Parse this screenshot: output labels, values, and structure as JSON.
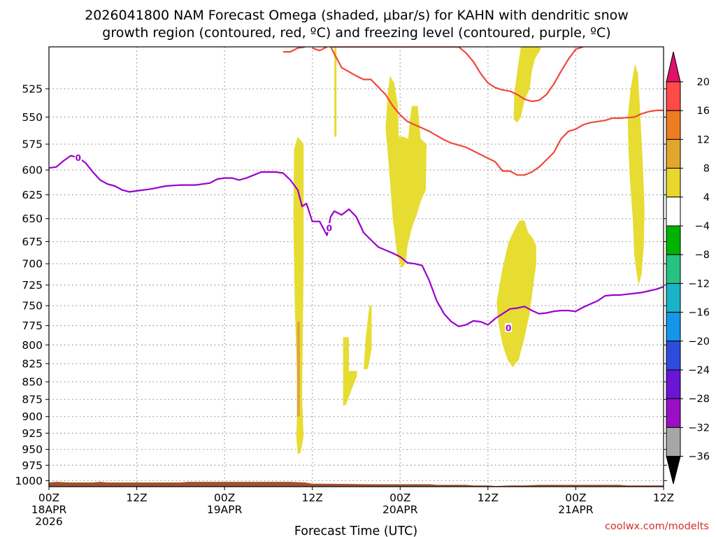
{
  "chart_data": {
    "type": "time-height cross section",
    "title_lines": [
      "2026041800 NAM Forecast Omega (shaded, μbar/s) for KAHN with dendritic snow",
      "growth region (contoured, red, ºC) and freezing level (contoured, purple, ºC)"
    ],
    "xlabel": "Forecast Time (UTC)",
    "credit": "coolwx.com/modelts",
    "x_range_hours": [
      0,
      84
    ],
    "y_range_hpa": [
      1010,
      490
    ],
    "x_ticks": [
      {
        "hour": 0,
        "lines": [
          "00Z",
          "18APR",
          "2026"
        ]
      },
      {
        "hour": 12,
        "lines": [
          "12Z"
        ]
      },
      {
        "hour": 24,
        "lines": [
          "00Z",
          "19APR"
        ]
      },
      {
        "hour": 36,
        "lines": [
          "12Z"
        ]
      },
      {
        "hour": 48,
        "lines": [
          "00Z",
          "20APR"
        ]
      },
      {
        "hour": 60,
        "lines": [
          "12Z"
        ]
      },
      {
        "hour": 72,
        "lines": [
          "00Z",
          "21APR"
        ]
      },
      {
        "hour": 84,
        "lines": [
          "12Z"
        ]
      }
    ],
    "y_ticks": [
      "525",
      "550",
      "575",
      "600",
      "625",
      "650",
      "675",
      "700",
      "725",
      "750",
      "775",
      "800",
      "825",
      "850",
      "875",
      "900",
      "925",
      "950",
      "975",
      "1000"
    ],
    "colorbar": {
      "labels": [
        "20",
        "16",
        "12",
        "8",
        "4",
        "−4",
        "−8",
        "−12",
        "−16",
        "−20",
        "−24",
        "−28",
        "−32",
        "−36"
      ],
      "colors": [
        "#ff4a4a",
        "#ee7d22",
        "#e2a62c",
        "#e8d82e",
        "#ffffff",
        "#00b300",
        "#27c281",
        "#19b2c7",
        "#1596ea",
        "#2f4bdc",
        "#6a14d4",
        "#9a0fc4",
        "#a6a6a6"
      ],
      "top_arrow_color": "#e0106b",
      "bottom_arrow_color": "#000000"
    },
    "colors": {
      "omega_positive": "#e7dc32",
      "omega_positive_strong": "#e0a63a",
      "snow_growth": "#f2473c",
      "freezing_level": "#9b00cc",
      "terrain": "#a0522d"
    },
    "freezing_level_label": "0",
    "freezing_level": [
      [
        0,
        598
      ],
      [
        1,
        597
      ],
      [
        2,
        591
      ],
      [
        3,
        586
      ],
      [
        4,
        588
      ],
      [
        5,
        593
      ],
      [
        6,
        602
      ],
      [
        7,
        610
      ],
      [
        8,
        614
      ],
      [
        9,
        616
      ],
      [
        10,
        620
      ],
      [
        11,
        622
      ],
      [
        12,
        621
      ],
      [
        14,
        619
      ],
      [
        16,
        616
      ],
      [
        18,
        615
      ],
      [
        20,
        615
      ],
      [
        22,
        613
      ],
      [
        23,
        609
      ],
      [
        24,
        608
      ],
      [
        25,
        608
      ],
      [
        26,
        610
      ],
      [
        27,
        608
      ],
      [
        28,
        605
      ],
      [
        29,
        602
      ],
      [
        30,
        602
      ],
      [
        31,
        602
      ],
      [
        32,
        603
      ],
      [
        33,
        610
      ],
      [
        34,
        620
      ],
      [
        34.6,
        637
      ],
      [
        35.2,
        634
      ],
      [
        36,
        653
      ],
      [
        37,
        653
      ],
      [
        38,
        668
      ],
      [
        38.5,
        648
      ],
      [
        39,
        642
      ],
      [
        40,
        646
      ],
      [
        41,
        640
      ],
      [
        42,
        648
      ],
      [
        43,
        665
      ],
      [
        44,
        673
      ],
      [
        45,
        681
      ],
      [
        47,
        688
      ],
      [
        48,
        692
      ],
      [
        49,
        699
      ],
      [
        50,
        700
      ],
      [
        51,
        702
      ],
      [
        52,
        720
      ],
      [
        53,
        744
      ],
      [
        54,
        760
      ],
      [
        55,
        770
      ],
      [
        56,
        776
      ],
      [
        57,
        774
      ],
      [
        58,
        769
      ],
      [
        59,
        770
      ],
      [
        60,
        774
      ],
      [
        61,
        766
      ],
      [
        62,
        760
      ],
      [
        63,
        754
      ],
      [
        64,
        753
      ],
      [
        65,
        751
      ],
      [
        66,
        756
      ],
      [
        67,
        760
      ],
      [
        68,
        759
      ],
      [
        69,
        757
      ],
      [
        70,
        756
      ],
      [
        71,
        756
      ],
      [
        72,
        757
      ],
      [
        73,
        752
      ],
      [
        74,
        748
      ],
      [
        75,
        744
      ],
      [
        76,
        738
      ],
      [
        77,
        737
      ],
      [
        78,
        737
      ],
      [
        79,
        736
      ],
      [
        80,
        735
      ],
      [
        81,
        734
      ],
      [
        82,
        732
      ],
      [
        83,
        730
      ],
      [
        84,
        727
      ]
    ],
    "freezing_label_points": [
      [
        4,
        588
      ],
      [
        38.3,
        660
      ],
      [
        62.8,
        778
      ]
    ],
    "snow_growth_contours": [
      [
        [
          32,
          494
        ],
        [
          33,
          494
        ],
        [
          34,
          491
        ],
        [
          35,
          490
        ]
      ],
      [
        [
          36,
          491
        ],
        [
          37,
          493
        ],
        [
          38,
          490
        ]
      ],
      [
        [
          38.5,
          490
        ],
        [
          40,
          507
        ],
        [
          42,
          514
        ],
        [
          43,
          517
        ],
        [
          44,
          517
        ],
        [
          46,
          530
        ],
        [
          47,
          540
        ],
        [
          48,
          548
        ],
        [
          49,
          554
        ],
        [
          50,
          557
        ],
        [
          51,
          560
        ],
        [
          52,
          563
        ],
        [
          53,
          567
        ],
        [
          54,
          571
        ],
        [
          55,
          574
        ],
        [
          57,
          578
        ],
        [
          59,
          585
        ],
        [
          61,
          592
        ],
        [
          62,
          601
        ],
        [
          63,
          601
        ],
        [
          64,
          605
        ],
        [
          65,
          605
        ],
        [
          66,
          602
        ],
        [
          67,
          597
        ],
        [
          68,
          590
        ],
        [
          69,
          583
        ],
        [
          70,
          570
        ],
        [
          71,
          563
        ],
        [
          72,
          561
        ],
        [
          73,
          557
        ],
        [
          74,
          555
        ],
        [
          75,
          554
        ],
        [
          76,
          553
        ],
        [
          77,
          551
        ],
        [
          78,
          551
        ],
        [
          80,
          550
        ],
        [
          81,
          547
        ],
        [
          82,
          545
        ],
        [
          83,
          544
        ],
        [
          84,
          544
        ]
      ],
      [
        [
          38.5,
          490
        ],
        [
          39,
          490
        ],
        [
          40,
          490
        ],
        [
          44,
          490
        ],
        [
          48,
          490
        ],
        [
          50,
          490
        ],
        [
          52,
          490
        ],
        [
          54,
          490
        ],
        [
          56,
          490
        ],
        [
          57,
          495
        ],
        [
          58,
          502
        ],
        [
          59,
          512
        ],
        [
          60,
          520
        ],
        [
          61,
          524
        ],
        [
          62,
          526
        ],
        [
          63,
          527
        ],
        [
          64,
          530
        ],
        [
          65,
          534
        ],
        [
          66,
          536
        ],
        [
          67,
          535
        ],
        [
          68,
          530
        ],
        [
          69,
          521
        ],
        [
          70,
          510
        ],
        [
          71,
          500
        ],
        [
          72,
          492
        ],
        [
          73,
          490
        ]
      ]
    ],
    "omega_regions": [
      {
        "level": "4",
        "points": [
          [
            33.5,
            580
          ],
          [
            34,
            568
          ],
          [
            34.8,
            575
          ],
          [
            34.8,
            700
          ],
          [
            34.6,
            870
          ],
          [
            34.8,
            930
          ],
          [
            34.4,
            955
          ],
          [
            34.0,
            958
          ],
          [
            33.8,
            930
          ],
          [
            34.0,
            870
          ],
          [
            33.6,
            750
          ],
          [
            33.4,
            650
          ]
        ]
      },
      {
        "level": "8",
        "points": [
          [
            33.9,
            770
          ],
          [
            34.3,
            770
          ],
          [
            34.3,
            900
          ],
          [
            33.9,
            900
          ]
        ]
      },
      {
        "level": "4",
        "points": [
          [
            39.0,
            490
          ],
          [
            39.3,
            490
          ],
          [
            39.3,
            568
          ],
          [
            39.0,
            568
          ]
        ]
      },
      {
        "level": "4",
        "points": [
          [
            40.2,
            790
          ],
          [
            41.0,
            790
          ],
          [
            41.0,
            835
          ],
          [
            42.1,
            835
          ],
          [
            42.1,
            842
          ],
          [
            41.4,
            860
          ],
          [
            40.6,
            882
          ],
          [
            40.2,
            885
          ]
        ]
      },
      {
        "level": "4",
        "points": [
          [
            43.0,
            833
          ],
          [
            43.3,
            790
          ],
          [
            43.8,
            750
          ],
          [
            44.1,
            750
          ],
          [
            44.1,
            805
          ],
          [
            43.6,
            832
          ]
        ]
      },
      {
        "level": "4",
        "points": [
          [
            46.6,
            514
          ],
          [
            47.2,
            520
          ],
          [
            47.7,
            540
          ],
          [
            47.8,
            568
          ],
          [
            48.5,
            568
          ],
          [
            49.1,
            570
          ],
          [
            49.3,
            555
          ],
          [
            49.6,
            540
          ],
          [
            50.4,
            540
          ],
          [
            50.8,
            570
          ],
          [
            51.6,
            575
          ],
          [
            51.5,
            620
          ],
          [
            50.8,
            632
          ],
          [
            50.3,
            645
          ],
          [
            49.6,
            660
          ],
          [
            49.0,
            680
          ],
          [
            48.7,
            700
          ],
          [
            48.2,
            705
          ],
          [
            47.6,
            690
          ],
          [
            47.0,
            650
          ],
          [
            46.5,
            600
          ],
          [
            46.0,
            560
          ],
          [
            46.3,
            530
          ]
        ]
      },
      {
        "level": "4",
        "points": [
          [
            64.5,
            490
          ],
          [
            65.4,
            490
          ],
          [
            67.2,
            490
          ],
          [
            67.2,
            492
          ],
          [
            66.4,
            500
          ],
          [
            66.0,
            510
          ],
          [
            65.7,
            525
          ],
          [
            65.0,
            535
          ],
          [
            64.5,
            550
          ],
          [
            64.0,
            555
          ],
          [
            63.5,
            552
          ],
          [
            63.6,
            530
          ],
          [
            64.0,
            510
          ]
        ]
      },
      {
        "level": "4",
        "points": [
          [
            61.2,
            745
          ],
          [
            62.0,
            705
          ],
          [
            62.8,
            676
          ],
          [
            63.5,
            664
          ],
          [
            64.3,
            652
          ],
          [
            65.0,
            652
          ],
          [
            65.5,
            665
          ],
          [
            66.2,
            672
          ],
          [
            66.6,
            680
          ],
          [
            66.6,
            700
          ],
          [
            66.2,
            725
          ],
          [
            65.7,
            760
          ],
          [
            65.0,
            790
          ],
          [
            64.2,
            820
          ],
          [
            63.4,
            830
          ],
          [
            62.7,
            820
          ],
          [
            62.0,
            800
          ],
          [
            61.4,
            770
          ]
        ]
      },
      {
        "level": "4",
        "points": [
          [
            79.1,
            550
          ],
          [
            79.5,
            525
          ],
          [
            80.1,
            504
          ],
          [
            80.5,
            512
          ],
          [
            80.8,
            545
          ],
          [
            81.2,
            600
          ],
          [
            81.4,
            640
          ],
          [
            81.3,
            680
          ],
          [
            81.0,
            712
          ],
          [
            80.6,
            725
          ],
          [
            80.3,
            710
          ],
          [
            80.0,
            690
          ],
          [
            79.8,
            650
          ],
          [
            79.4,
            610
          ],
          [
            79.2,
            580
          ]
        ]
      }
    ],
    "terrain_top": [
      [
        0,
        1003
      ],
      [
        1,
        1002
      ],
      [
        3,
        1003
      ],
      [
        6,
        1003
      ],
      [
        7,
        1002
      ],
      [
        8,
        1003
      ],
      [
        12,
        1003
      ],
      [
        18,
        1003
      ],
      [
        19,
        1002
      ],
      [
        24,
        1002
      ],
      [
        33,
        1002
      ],
      [
        35,
        1003
      ],
      [
        36,
        1005
      ],
      [
        37,
        1005
      ],
      [
        44,
        1006
      ],
      [
        52,
        1006
      ],
      [
        53,
        1007
      ],
      [
        57,
        1007
      ],
      [
        58,
        1008
      ],
      [
        60,
        1008
      ],
      [
        61,
        1009
      ],
      [
        63,
        1008
      ],
      [
        65,
        1008
      ],
      [
        67,
        1007
      ],
      [
        78,
        1007
      ],
      [
        79,
        1008
      ],
      [
        84,
        1008
      ]
    ]
  }
}
